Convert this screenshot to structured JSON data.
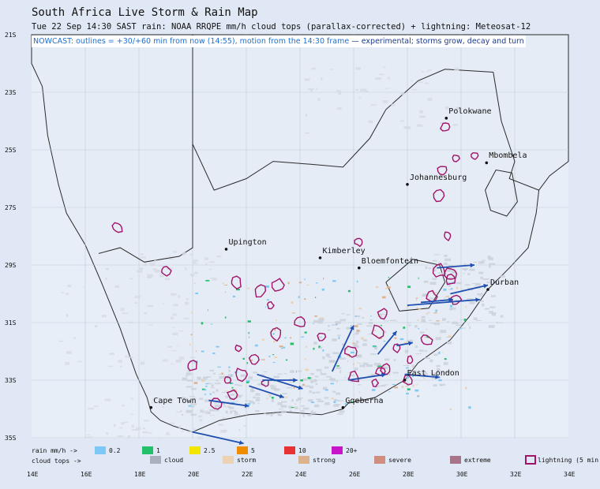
{
  "header": {
    "title": "South Africa Live Storm & Rain Map",
    "subtitle": "Tue 22 Sep 14:30 SAST   rain: NOAA RRQPE mm/h   cloud tops (parallax-corrected) + lightning: Meteosat-12",
    "nowcast_prefix": "NOWCAST: outlines = +30/+60 min from now (14:55), motion from the 14:30 frame",
    "nowcast_suffix": " — experimental; storms grow, decay and turn"
  },
  "axes": {
    "y_labels": [
      "21S",
      "23S",
      "25S",
      "27S",
      "29S",
      "31S",
      "33S",
      "35S"
    ],
    "x_labels": [
      "14E",
      "16E",
      "18E",
      "20E",
      "22E",
      "24E",
      "26E",
      "28E",
      "30E",
      "32E",
      "34E"
    ]
  },
  "cities": [
    {
      "name": "Polokwane",
      "lon": 29.45,
      "lat": -23.9
    },
    {
      "name": "Mbombela",
      "lon": 30.95,
      "lat": -25.45
    },
    {
      "name": "Johannesburg",
      "lon": 28.0,
      "lat": -26.2
    },
    {
      "name": "Upington",
      "lon": 21.25,
      "lat": -28.45
    },
    {
      "name": "Kimberley",
      "lon": 24.75,
      "lat": -28.75
    },
    {
      "name": "Bloemfontein",
      "lon": 26.2,
      "lat": -29.1
    },
    {
      "name": "Durban",
      "lon": 31.0,
      "lat": -29.85
    },
    {
      "name": "East London",
      "lon": 27.9,
      "lat": -33.0
    },
    {
      "name": "Cape Town",
      "lon": 18.45,
      "lat": -33.95
    },
    {
      "name": "Gqeberha",
      "lon": 25.6,
      "lat": -33.95
    }
  ],
  "legend": {
    "rain_label": "rain mm/h ->",
    "rain": [
      {
        "label": "0.2",
        "color": "#7ec8f5"
      },
      {
        "label": "1",
        "color": "#22c06a"
      },
      {
        "label": "2.5",
        "color": "#f2e600"
      },
      {
        "label": "5",
        "color": "#f08c00"
      },
      {
        "label": "10",
        "color": "#e63232"
      },
      {
        "label": "20+",
        "color": "#c814c8"
      }
    ],
    "cloud_label": "cloud tops ->",
    "cloud": [
      {
        "label": "cloud",
        "color": "#a9b1bd"
      },
      {
        "label": "storm",
        "color": "#ecd2b4"
      },
      {
        "label": "strong",
        "color": "#ddb38e"
      },
      {
        "label": "severe",
        "color": "#cf8e80"
      },
      {
        "label": "extreme",
        "color": "#a87489"
      }
    ],
    "lightning_label": "lightning (5 min",
    "lightning_color": "#a0146a"
  },
  "storms": [
    [
      -27.7,
      17.2
    ],
    [
      -29.2,
      19.0
    ],
    [
      -29.6,
      21.6
    ],
    [
      -29.9,
      22.5
    ],
    [
      -29.7,
      23.2
    ],
    [
      -30.4,
      22.9
    ],
    [
      -31.0,
      24.0
    ],
    [
      -31.4,
      23.1
    ],
    [
      -31.5,
      24.8
    ],
    [
      -32.0,
      25.9
    ],
    [
      -31.9,
      21.7
    ],
    [
      -32.5,
      20.0
    ],
    [
      -32.8,
      21.8
    ],
    [
      -33.1,
      22.7
    ],
    [
      -33.0,
      21.3
    ],
    [
      -33.5,
      21.5
    ],
    [
      -33.8,
      20.9
    ],
    [
      -32.3,
      22.3
    ],
    [
      -32.9,
      26.0
    ],
    [
      -32.6,
      27.2
    ],
    [
      -32.3,
      28.1
    ],
    [
      -31.6,
      28.7
    ],
    [
      -31.9,
      27.6
    ],
    [
      -31.3,
      26.9
    ],
    [
      -30.7,
      27.1
    ],
    [
      -33.0,
      28.0
    ],
    [
      -29.2,
      29.2
    ],
    [
      -29.5,
      29.6
    ],
    [
      -29.3,
      29.6
    ],
    [
      -30.1,
      28.9
    ],
    [
      -30.2,
      29.8
    ],
    [
      -28.2,
      26.2
    ],
    [
      -26.6,
      29.2
    ],
    [
      -25.7,
      29.3
    ],
    [
      -25.3,
      29.8
    ],
    [
      -25.2,
      30.5
    ],
    [
      -24.2,
      29.4
    ],
    [
      -28.0,
      29.5
    ],
    [
      -33.1,
      26.8
    ],
    [
      -32.7,
      27.0
    ]
  ],
  "motion_vectors": [
    {
      "from": [
        -33.2,
        22.1
      ],
      "to": [
        -33.6,
        23.4
      ]
    },
    {
      "from": [
        -32.8,
        22.4
      ],
      "to": [
        -33.3,
        24.1
      ]
    },
    {
      "from": [
        -33.0,
        22.6
      ],
      "to": [
        -33.0,
        23.9
      ]
    },
    {
      "from": [
        -33.7,
        20.6
      ],
      "to": [
        -33.9,
        22.1
      ]
    },
    {
      "from": [
        -34.8,
        20.0
      ],
      "to": [
        -35.2,
        21.9
      ]
    },
    {
      "from": [
        -33.0,
        25.8
      ],
      "to": [
        -32.8,
        27.2
      ]
    },
    {
      "from": [
        -32.8,
        27.9
      ],
      "to": [
        -32.9,
        29.2
      ]
    },
    {
      "from": [
        -32.7,
        25.2
      ],
      "to": [
        -31.1,
        26.0
      ]
    },
    {
      "from": [
        -30.4,
        28.0
      ],
      "to": [
        -30.2,
        30.7
      ]
    },
    {
      "from": [
        -29.1,
        29.1
      ],
      "to": [
        -29.0,
        30.5
      ]
    },
    {
      "from": [
        -30.0,
        29.6
      ],
      "to": [
        -29.7,
        31.0
      ]
    },
    {
      "from": [
        -30.3,
        28.5
      ],
      "to": [
        -30.2,
        29.7
      ]
    },
    {
      "from": [
        -32.1,
        26.9
      ],
      "to": [
        -31.3,
        27.6
      ]
    },
    {
      "from": [
        -31.8,
        27.6
      ],
      "to": [
        -31.7,
        28.2
      ]
    }
  ]
}
